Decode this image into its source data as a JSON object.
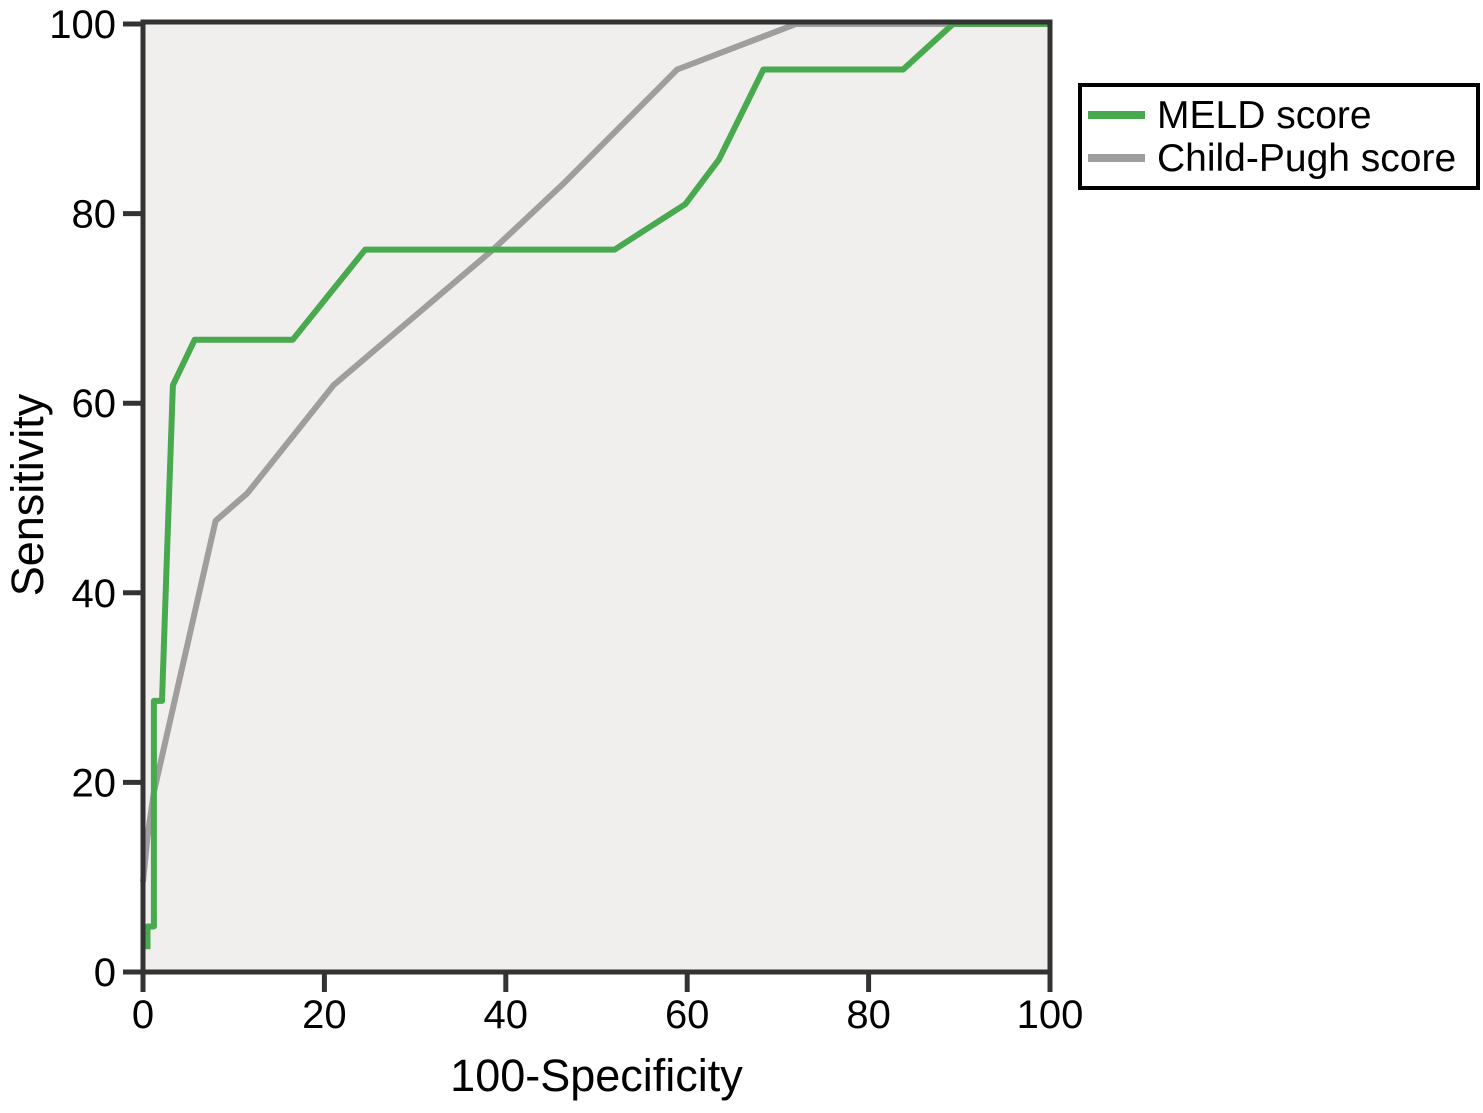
{
  "chart_data": {
    "type": "line",
    "title": "",
    "xlabel": "100-Specificity",
    "ylabel": "Sensitivity",
    "xlim": [
      0,
      100
    ],
    "ylim": [
      0,
      100
    ],
    "x_ticks": [
      0,
      20,
      40,
      60,
      80,
      100
    ],
    "y_ticks": [
      0,
      20,
      40,
      60,
      80,
      100
    ],
    "grid": false,
    "legend_position": "top-right-outside",
    "plot_background": "#f0efee",
    "axis_color": "#333333",
    "series": [
      {
        "name": "MELD score",
        "color": "#49a94f",
        "points": [
          [
            0.5,
            2.4
          ],
          [
            0.5,
            4.8
          ],
          [
            1.2,
            4.8
          ],
          [
            1.2,
            28.6
          ],
          [
            2.1,
            28.6
          ],
          [
            2.6,
            42.9
          ],
          [
            3.3,
            61.9
          ],
          [
            5.7,
            66.7
          ],
          [
            16.5,
            66.7
          ],
          [
            24.5,
            76.2
          ],
          [
            52,
            76.2
          ],
          [
            59.8,
            81
          ],
          [
            63.5,
            85.7
          ],
          [
            68.4,
            95.2
          ],
          [
            83.8,
            95.2
          ],
          [
            89.3,
            100
          ],
          [
            100,
            100
          ]
        ]
      },
      {
        "name": "Child-Pugh score",
        "color": "#9e9e9e",
        "points": [
          [
            0,
            9.5
          ],
          [
            0.5,
            14.3
          ],
          [
            1.2,
            19
          ],
          [
            8,
            47.6
          ],
          [
            11.5,
            50.5
          ],
          [
            21,
            61.9
          ],
          [
            38.6,
            76.2
          ],
          [
            46.5,
            83.3
          ],
          [
            58.9,
            95.2
          ],
          [
            72,
            100
          ],
          [
            100,
            100
          ]
        ]
      }
    ]
  }
}
